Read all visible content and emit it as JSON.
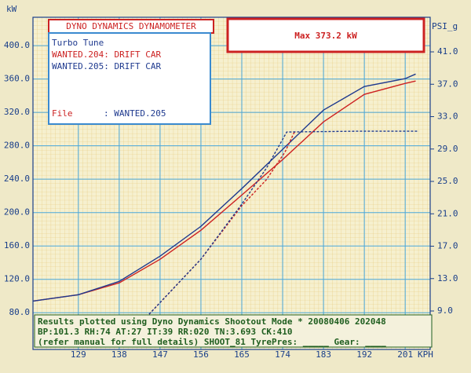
{
  "chart_data": {
    "type": "line",
    "header": "DYNO DYNAMICS DYNAMOMETER",
    "max_label": "Max 373.2 kW",
    "subtitle": "Turbo Tune",
    "file_label": "File",
    "file_value": ": WANTED.205",
    "y_label": "kW",
    "y2_label": "PSI_g",
    "x_label": "KPH",
    "notes": [
      "Results plotted using Dyno Dynamics Shootout Mode * 20080406 202048",
      "BP:101.3 RH:74 AT:27 IT:39  RR:020 TN:3.693 CK:410",
      "(refer manual for full details) SHOOT_81 TyrePres: _____ Gear: ____"
    ],
    "xlim": [
      119,
      206.5
    ],
    "xticks": [
      129,
      138,
      147,
      156,
      165,
      174,
      183,
      192,
      201
    ],
    "ylim": [
      36,
      434
    ],
    "yticks": [
      {
        "value": 80,
        "label": "80.0"
      },
      {
        "value": 120,
        "label": "120.0"
      },
      {
        "value": 160,
        "label": "160.0"
      },
      {
        "value": 200,
        "label": "200.0"
      },
      {
        "value": 240,
        "label": "240.0"
      },
      {
        "value": 280,
        "label": "280.0"
      },
      {
        "value": 320,
        "label": "320.0"
      },
      {
        "value": 360,
        "label": "360.0"
      },
      {
        "value": 400,
        "label": "400.0"
      }
    ],
    "y2lim": [
      4.25,
      45.27
    ],
    "y2ticks": [
      {
        "value": 9,
        "label": "9.0"
      },
      {
        "value": 13,
        "label": "13.0"
      },
      {
        "value": 17,
        "label": "17.0"
      },
      {
        "value": 21,
        "label": "21.0"
      },
      {
        "value": 25,
        "label": "25.0"
      },
      {
        "value": 29,
        "label": "29.0"
      },
      {
        "value": 33,
        "label": "33.0"
      },
      {
        "value": 37,
        "label": "37.0"
      },
      {
        "value": 41,
        "label": "41.0"
      }
    ],
    "grid": true,
    "series": [
      {
        "name": "WANTED.204: DRIFT CAR",
        "color": "#cc2222",
        "x": [
          119,
          129,
          138,
          147,
          156,
          165,
          174,
          183,
          192,
          201,
          203.3
        ],
        "values": [
          94,
          101.6,
          115.8,
          144,
          178.8,
          221,
          263.5,
          308.7,
          341.6,
          354.8,
          357.6
        ]
      },
      {
        "name": "WANTED.205: DRIFT CAR",
        "color": "#1f3a8f",
        "x": [
          119,
          129,
          138,
          147,
          156,
          165,
          174,
          183,
          192,
          201,
          203.3
        ],
        "values": [
          94,
          101.6,
          117.6,
          147.8,
          183.5,
          228.7,
          275.8,
          322.8,
          351,
          360.5,
          366
        ]
      },
      {
        "color": "#cc2222",
        "axis": "y2",
        "x": [
          144.6,
          156,
          165,
          170.4,
          174.5,
          176.6
        ],
        "values": [
          8.6,
          15.4,
          22,
          25.2,
          28.6,
          31.1
        ]
      },
      {
        "color": "#1f3a8f",
        "axis": "y2",
        "x": [
          144.6,
          156,
          165,
          170.4,
          174.9,
          190,
          204
        ],
        "values": [
          8.6,
          15.4,
          22.2,
          26.6,
          31.1,
          31.2,
          31.2
        ]
      }
    ]
  }
}
